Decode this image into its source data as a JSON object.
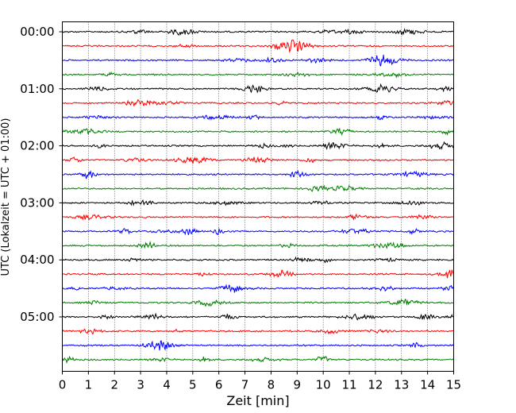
{
  "chart_data": {
    "type": "line",
    "title": "",
    "xlabel": "Zeit  [min]",
    "ylabel": "UTC (Lokalzeit = UTC + 01:00)",
    "xlim": [
      0,
      15
    ],
    "x_ticks": [
      "0",
      "1",
      "2",
      "3",
      "4",
      "5",
      "6",
      "7",
      "8",
      "9",
      "10",
      "11",
      "12",
      "13",
      "14",
      "15"
    ],
    "y_tick_labels": [
      "00:00",
      "01:00",
      "02:00",
      "03:00",
      "04:00",
      "05:00"
    ],
    "grid": "vertical dotted at each minute",
    "trace_interval_minutes": 15,
    "trace_colors": [
      "#000000",
      "#ff0000",
      "#0000ff",
      "#008000"
    ],
    "trace_count": 24,
    "trace_start_times": [
      "00:00",
      "00:15",
      "00:30",
      "00:45",
      "01:00",
      "01:15",
      "01:30",
      "01:45",
      "02:00",
      "02:15",
      "02:30",
      "02:45",
      "03:00",
      "03:15",
      "03:30",
      "03:45",
      "04:00",
      "04:15",
      "04:30",
      "04:45",
      "05:00",
      "05:15",
      "05:30",
      "05:45"
    ]
  }
}
